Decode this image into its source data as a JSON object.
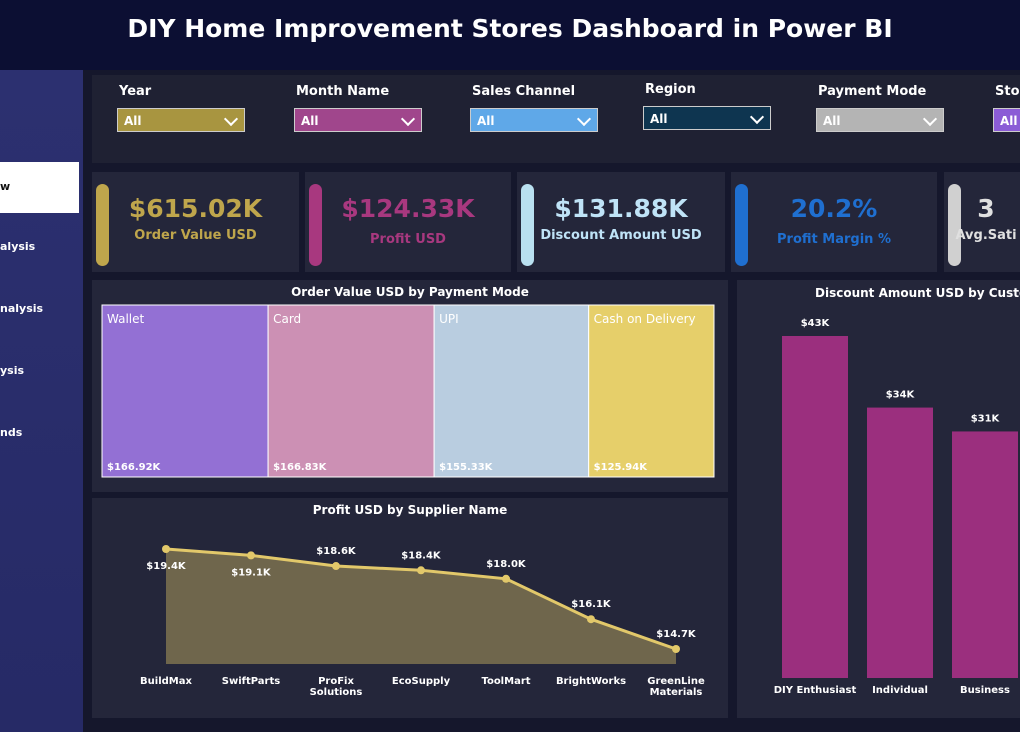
{
  "header": {
    "title": "DIY Home Improvement Stores Dashboard in Power BI"
  },
  "nav": {
    "items": [
      "w",
      "alysis",
      "nalysis",
      "ysis",
      "nds"
    ]
  },
  "slicers": [
    {
      "label": "Year",
      "value": "All",
      "color": "#a89540"
    },
    {
      "label": "Month Name",
      "value": "All",
      "color": "#a0468c"
    },
    {
      "label": "Sales Channel",
      "value": "All",
      "color": "#5fa8e8"
    },
    {
      "label": "Region",
      "value": "All",
      "color": "#0e3550"
    },
    {
      "label": "Payment Mode",
      "value": "All",
      "color": "#b4b4b4"
    },
    {
      "label": "Sto",
      "value": "All",
      "color": "#8b5cd6"
    }
  ],
  "kpis": [
    {
      "value": "$615.02K",
      "label": "Order Value USD",
      "color": "#bfa64c"
    },
    {
      "value": "$124.33K",
      "label": "Profit USD",
      "color": "#a8387f"
    },
    {
      "value": "$131.88K",
      "label": "Discount Amount USD",
      "color": "#b9e0f0"
    },
    {
      "value": "20.2%",
      "label": "Profit Margin %",
      "color": "#1f6fd0"
    },
    {
      "value": "3",
      "label": "Avg.Sati",
      "color": "#d0d0d0"
    }
  ],
  "chart_data": [
    {
      "type": "treemap",
      "title": "Order Value USD by Payment Mode",
      "categories": [
        "Wallet",
        "Card",
        "UPI",
        "Cash on Delivery"
      ],
      "values": [
        166.92,
        166.83,
        155.33,
        125.94
      ],
      "value_labels": [
        "$166.92K",
        "$166.83K",
        "$155.33K",
        "$125.94K"
      ],
      "colors": [
        "#9370d4",
        "#cc90b4",
        "#b9cde0",
        "#e6cf6a"
      ]
    },
    {
      "type": "area",
      "title": "Profit USD by Supplier Name",
      "categories": [
        "BuildMax",
        "SwiftParts",
        "ProFix Solutions",
        "EcoSupply",
        "ToolMart",
        "BrightWorks",
        "GreenLine Materials"
      ],
      "values": [
        19.4,
        19.1,
        18.6,
        18.4,
        18.0,
        16.1,
        14.7
      ],
      "value_labels": [
        "$19.4K",
        "$19.1K",
        "$18.6K",
        "$18.4K",
        "$18.0K",
        "$16.1K",
        "$14.7K"
      ],
      "color": "#e2c86a"
    },
    {
      "type": "bar",
      "title": "Discount Amount USD by Custo",
      "categories": [
        "DIY Enthusiast",
        "Individual",
        "Business"
      ],
      "values": [
        43,
        34,
        31
      ],
      "value_labels": [
        "$43K",
        "$34K",
        "$31K"
      ],
      "color": "#9b2f7e"
    }
  ]
}
